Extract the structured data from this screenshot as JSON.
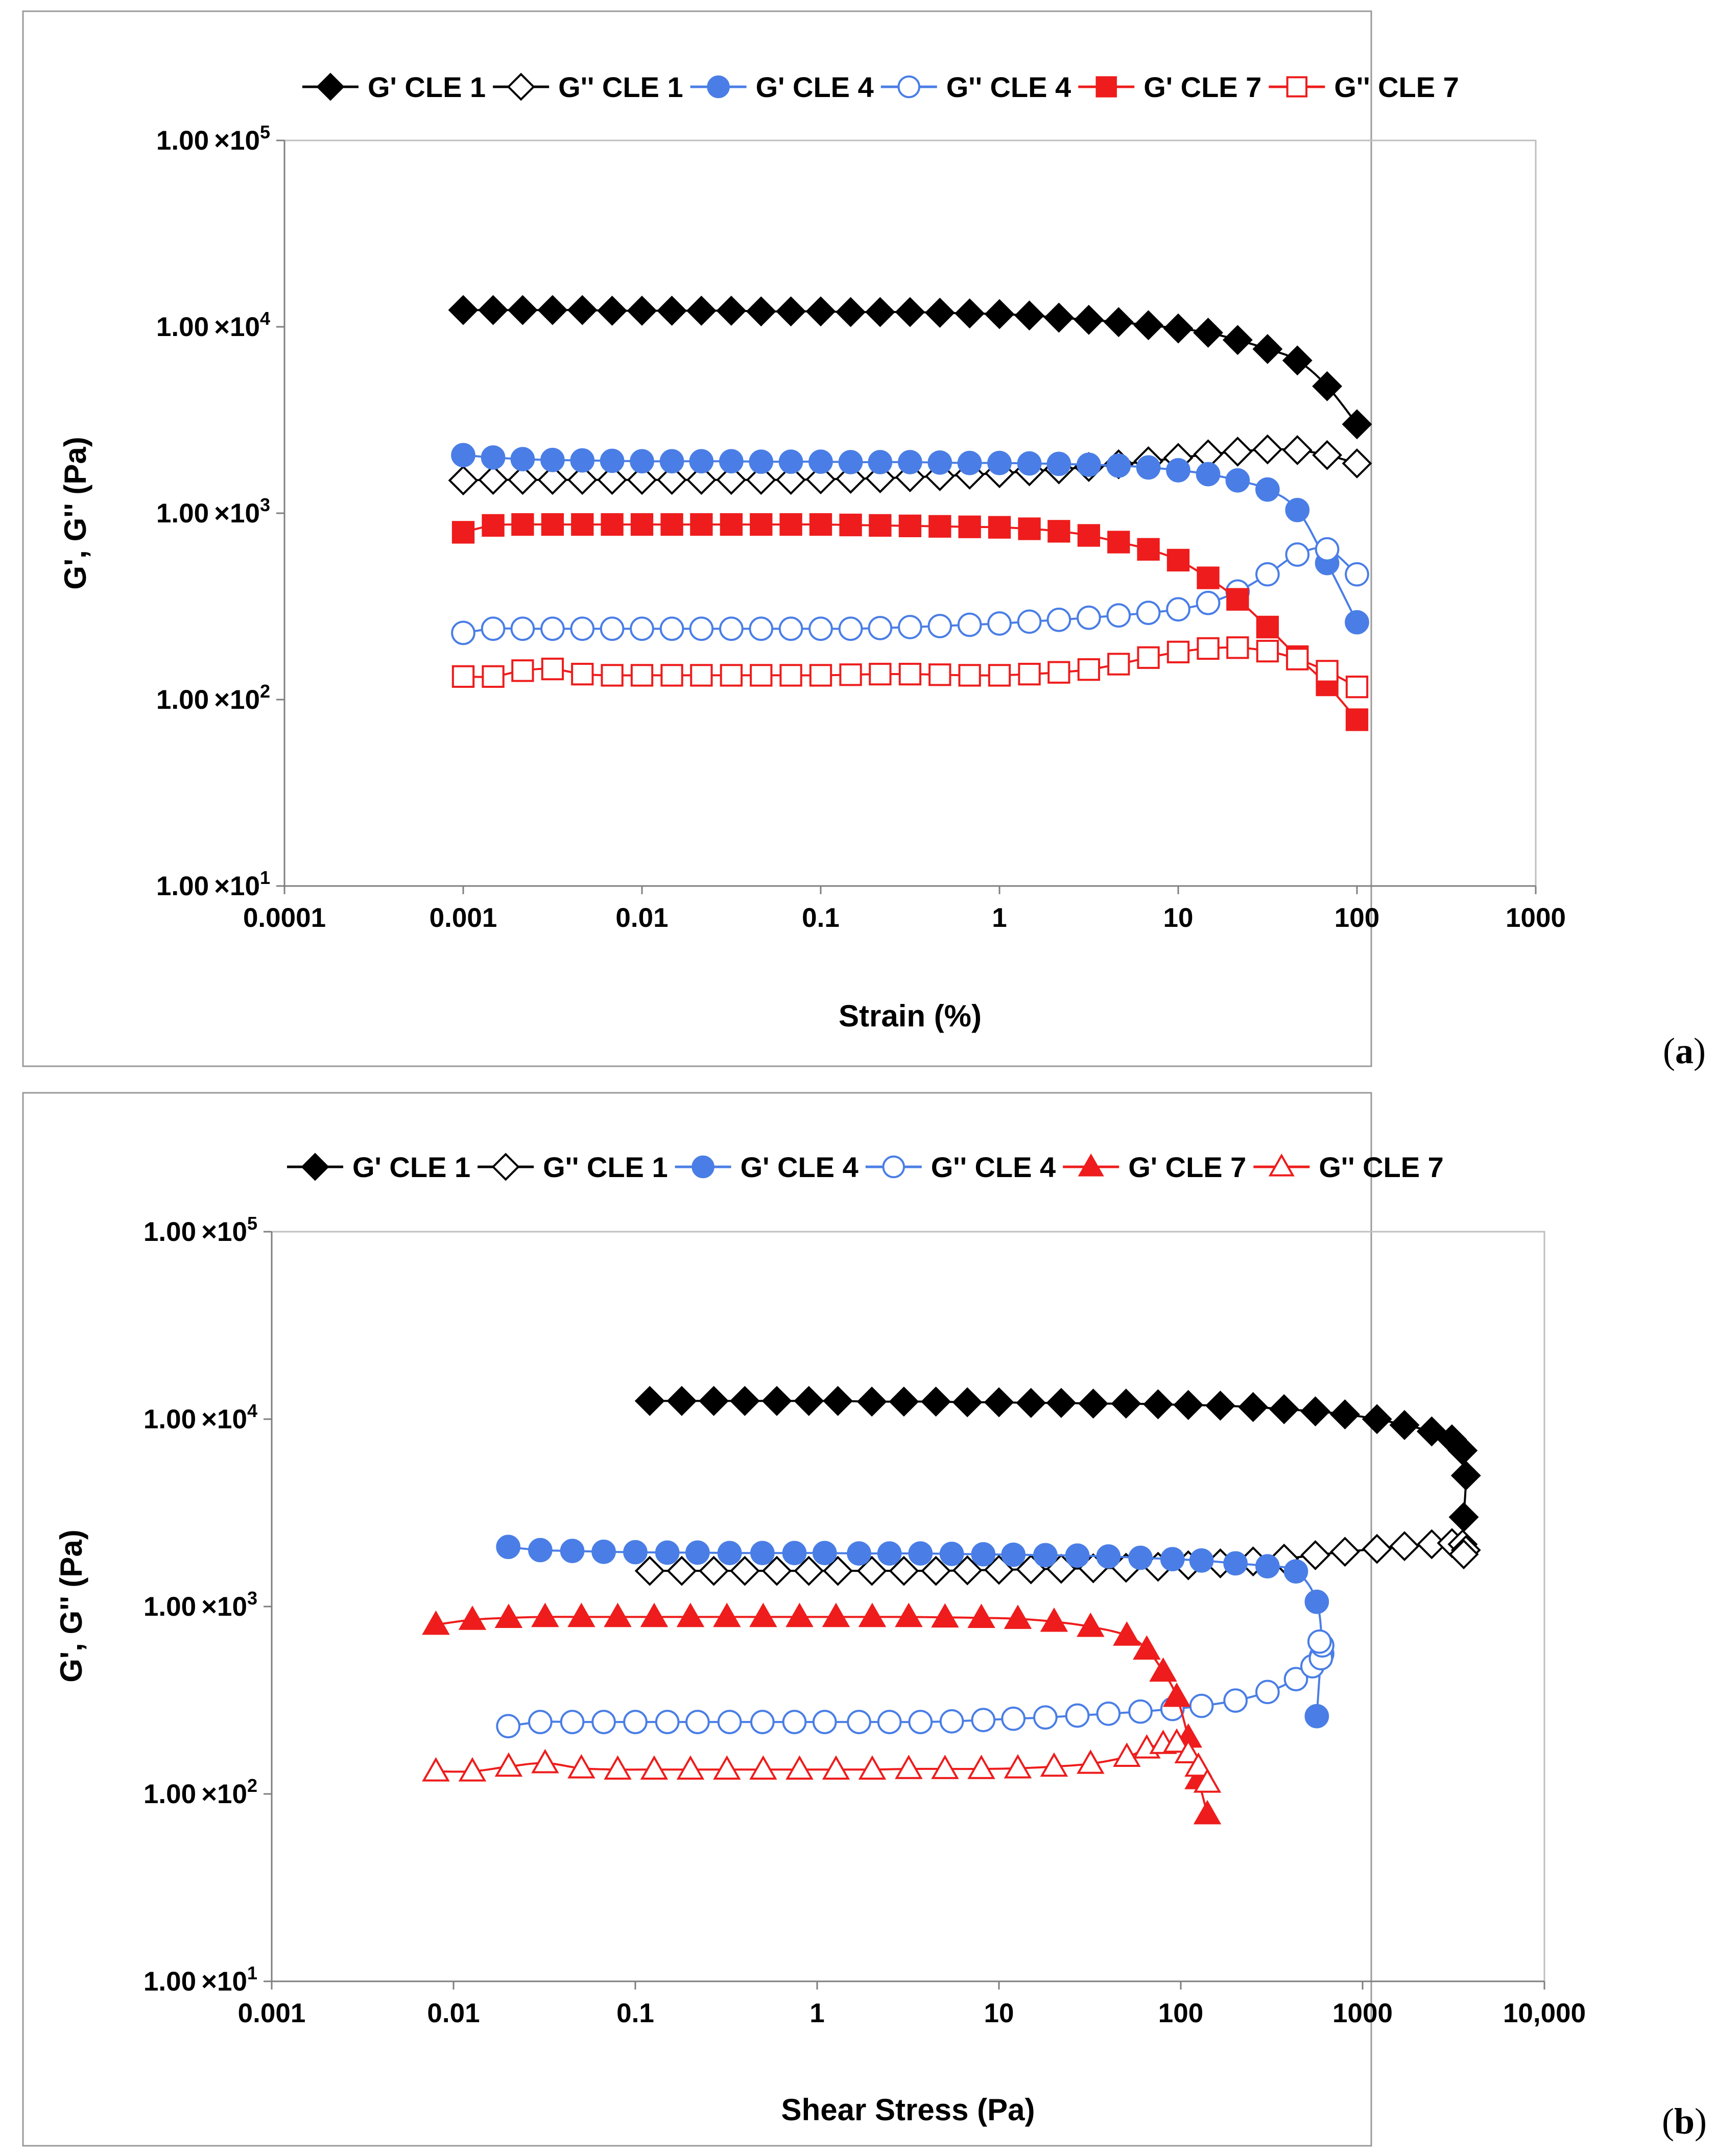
{
  "chart_data": [
    {
      "type": "line",
      "panel_label": "(a)",
      "panel_open": "(",
      "panel_letter": "a",
      "panel_close": ")",
      "xlabel": "Strain (%)",
      "ylabel": "G', G'' (Pa)",
      "xscale": "log",
      "yscale": "log",
      "xlim": [
        0.0001,
        1000
      ],
      "ylim": [
        10,
        100000
      ],
      "x_ticks": [
        {
          "value": 0.0001,
          "label": "0.0001"
        },
        {
          "value": 0.001,
          "label": "0.001"
        },
        {
          "value": 0.01,
          "label": "0.01"
        },
        {
          "value": 0.1,
          "label": "0.1"
        },
        {
          "value": 1,
          "label": "1"
        },
        {
          "value": 10,
          "label": "10"
        },
        {
          "value": 100,
          "label": "100"
        },
        {
          "value": 1000,
          "label": "1000"
        }
      ],
      "y_ticks": [
        {
          "value": 10,
          "mantissa": "1.00",
          "times": "×",
          "base": "10",
          "exp": "1"
        },
        {
          "value": 100,
          "mantissa": "1.00",
          "times": "×",
          "base": "10",
          "exp": "2"
        },
        {
          "value": 1000,
          "mantissa": "1.00",
          "times": "×",
          "base": "10",
          "exp": "3"
        },
        {
          "value": 10000,
          "mantissa": "1.00",
          "times": "×",
          "base": "10",
          "exp": "4"
        },
        {
          "value": 100000,
          "mantissa": "1.00",
          "times": "×",
          "base": "10",
          "exp": "5"
        }
      ],
      "legend_position": "top",
      "series": [
        {
          "name": "G' CLE 1",
          "color": "#000000",
          "marker": "diamond",
          "filled": true,
          "x": [
            0.001,
            0.00147,
            0.00215,
            0.00316,
            0.00464,
            0.00681,
            0.01,
            0.0147,
            0.0215,
            0.0316,
            0.0464,
            0.0681,
            0.1,
            0.147,
            0.215,
            0.316,
            0.464,
            0.681,
            1,
            1.47,
            2.15,
            3.16,
            4.64,
            6.81,
            10,
            14.7,
            21.5,
            31.6,
            46.4,
            68.1,
            100
          ],
          "y": [
            12300,
            12300,
            12300,
            12300,
            12300,
            12200,
            12200,
            12200,
            12200,
            12200,
            12100,
            12100,
            12100,
            12000,
            12000,
            12000,
            11900,
            11800,
            11700,
            11500,
            11200,
            10900,
            10600,
            10200,
            9800,
            9300,
            8500,
            7600,
            6600,
            4800,
            3000
          ]
        },
        {
          "name": "G'' CLE 1",
          "color": "#000000",
          "marker": "diamond",
          "filled": false,
          "x": [
            0.001,
            0.00147,
            0.00215,
            0.00316,
            0.00464,
            0.00681,
            0.01,
            0.0147,
            0.0215,
            0.0316,
            0.0464,
            0.0681,
            0.1,
            0.147,
            0.215,
            0.316,
            0.464,
            0.681,
            1,
            1.47,
            2.15,
            3.16,
            4.64,
            6.81,
            10,
            14.7,
            21.5,
            31.6,
            46.4,
            68.1,
            100
          ],
          "y": [
            1500,
            1510,
            1510,
            1510,
            1510,
            1510,
            1510,
            1510,
            1510,
            1510,
            1510,
            1510,
            1520,
            1530,
            1540,
            1560,
            1580,
            1610,
            1640,
            1680,
            1720,
            1770,
            1830,
            1900,
            1980,
            2070,
            2140,
            2200,
            2180,
            2050,
            1850
          ]
        },
        {
          "name": "G' CLE 4",
          "color": "#4a7ee6",
          "marker": "circle",
          "filled": true,
          "x": [
            0.001,
            0.00147,
            0.00215,
            0.00316,
            0.00464,
            0.00681,
            0.01,
            0.0147,
            0.0215,
            0.0316,
            0.0464,
            0.0681,
            0.1,
            0.147,
            0.215,
            0.316,
            0.464,
            0.681,
            1,
            1.47,
            2.15,
            3.16,
            4.64,
            6.81,
            10,
            14.7,
            21.5,
            31.6,
            46.4,
            68.1,
            100
          ],
          "y": [
            2050,
            1990,
            1950,
            1930,
            1920,
            1910,
            1900,
            1900,
            1900,
            1900,
            1890,
            1890,
            1890,
            1880,
            1880,
            1880,
            1870,
            1860,
            1860,
            1850,
            1840,
            1820,
            1800,
            1760,
            1700,
            1620,
            1500,
            1340,
            1040,
            540,
            260
          ]
        },
        {
          "name": "G'' CLE 4",
          "color": "#4a7ee6",
          "marker": "circle",
          "filled": false,
          "x": [
            0.001,
            0.00147,
            0.00215,
            0.00316,
            0.00464,
            0.00681,
            0.01,
            0.0147,
            0.0215,
            0.0316,
            0.0464,
            0.0681,
            0.1,
            0.147,
            0.215,
            0.316,
            0.464,
            0.681,
            1,
            1.47,
            2.15,
            3.16,
            4.64,
            6.81,
            10,
            14.7,
            21.5,
            31.6,
            46.4,
            68.1,
            100
          ],
          "y": [
            228,
            240,
            240,
            240,
            240,
            240,
            240,
            240,
            240,
            240,
            240,
            240,
            240,
            240,
            242,
            245,
            248,
            252,
            256,
            262,
            268,
            275,
            283,
            292,
            305,
            330,
            380,
            470,
            600,
            640,
            470
          ]
        },
        {
          "name": "G' CLE 7",
          "color": "#ee1c1c",
          "marker": "square",
          "filled": true,
          "x": [
            0.001,
            0.00147,
            0.00215,
            0.00316,
            0.00464,
            0.00681,
            0.01,
            0.0147,
            0.0215,
            0.0316,
            0.0464,
            0.0681,
            0.1,
            0.147,
            0.215,
            0.316,
            0.464,
            0.681,
            1,
            1.47,
            2.15,
            3.16,
            4.64,
            6.81,
            10,
            14.7,
            21.5,
            31.6,
            46.4,
            68.1,
            100
          ],
          "y": [
            790,
            860,
            870,
            870,
            870,
            870,
            870,
            870,
            870,
            870,
            870,
            870,
            870,
            865,
            860,
            855,
            850,
            845,
            840,
            825,
            800,
            760,
            700,
            640,
            560,
            450,
            345,
            245,
            170,
            120,
            78
          ]
        },
        {
          "name": "G'' CLE 7",
          "color": "#ee1c1c",
          "marker": "square",
          "filled": false,
          "x": [
            0.001,
            0.00147,
            0.00215,
            0.00316,
            0.00464,
            0.00681,
            0.01,
            0.0147,
            0.0215,
            0.0316,
            0.0464,
            0.0681,
            0.1,
            0.147,
            0.215,
            0.316,
            0.464,
            0.681,
            1,
            1.47,
            2.15,
            3.16,
            4.64,
            6.81,
            10,
            14.7,
            21.5,
            31.6,
            46.4,
            68.1,
            100
          ],
          "y": [
            133,
            133,
            143,
            146,
            137,
            135,
            135,
            135,
            135,
            135,
            135,
            135,
            135,
            136,
            137,
            137,
            136,
            135,
            135,
            137,
            140,
            145,
            155,
            168,
            180,
            188,
            190,
            182,
            165,
            142,
            117
          ]
        }
      ]
    },
    {
      "type": "line",
      "panel_label": "(b)",
      "panel_open": "(",
      "panel_letter": "b",
      "panel_close": ")",
      "xlabel": "Shear Stress (Pa)",
      "ylabel": "G', G'' (Pa)",
      "xscale": "log",
      "yscale": "log",
      "xlim": [
        0.001,
        10000
      ],
      "ylim": [
        10,
        100000
      ],
      "x_ticks": [
        {
          "value": 0.001,
          "label": "0.001"
        },
        {
          "value": 0.01,
          "label": "0.01"
        },
        {
          "value": 0.1,
          "label": "0.1"
        },
        {
          "value": 1,
          "label": "1"
        },
        {
          "value": 10,
          "label": "10"
        },
        {
          "value": 100,
          "label": "100"
        },
        {
          "value": 1000,
          "label": "1000"
        },
        {
          "value": 10000,
          "label": "10,000"
        }
      ],
      "y_ticks": [
        {
          "value": 10,
          "mantissa": "1.00",
          "times": "×",
          "base": "10",
          "exp": "1"
        },
        {
          "value": 100,
          "mantissa": "1.00",
          "times": "×",
          "base": "10",
          "exp": "2"
        },
        {
          "value": 1000,
          "mantissa": "1.00",
          "times": "×",
          "base": "10",
          "exp": "3"
        },
        {
          "value": 10000,
          "mantissa": "1.00",
          "times": "×",
          "base": "10",
          "exp": "4"
        },
        {
          "value": 100000,
          "mantissa": "1.00",
          "times": "×",
          "base": "10",
          "exp": "5"
        }
      ],
      "legend_position": "top",
      "series": [
        {
          "name": "G' CLE 1",
          "color": "#000000",
          "marker": "diamond",
          "filled": true,
          "x": [
            0.12,
            0.18,
            0.27,
            0.4,
            0.6,
            0.9,
            1.3,
            2,
            3,
            4.5,
            6.7,
            10,
            15,
            22,
            33,
            50,
            75,
            110,
            165,
            250,
            370,
            550,
            800,
            1200,
            1700,
            2400,
            3100,
            3550,
            3700,
            3600
          ],
          "y": [
            12500,
            12500,
            12500,
            12500,
            12500,
            12500,
            12500,
            12400,
            12400,
            12400,
            12300,
            12300,
            12200,
            12200,
            12100,
            12100,
            12000,
            11900,
            11800,
            11600,
            11300,
            11000,
            10600,
            10000,
            9300,
            8600,
            7800,
            6800,
            5000,
            3000
          ]
        },
        {
          "name": "G'' CLE 1",
          "color": "#000000",
          "marker": "diamond",
          "filled": false,
          "x": [
            0.12,
            0.18,
            0.27,
            0.4,
            0.6,
            0.9,
            1.3,
            2,
            3,
            4.5,
            6.7,
            10,
            15,
            22,
            33,
            50,
            75,
            110,
            165,
            250,
            370,
            550,
            800,
            1200,
            1700,
            2400,
            3100,
            3550,
            3700,
            3600
          ],
          "y": [
            1550,
            1550,
            1550,
            1550,
            1550,
            1550,
            1550,
            1550,
            1550,
            1550,
            1560,
            1570,
            1580,
            1590,
            1600,
            1610,
            1630,
            1660,
            1700,
            1740,
            1800,
            1880,
            1960,
            2030,
            2100,
            2150,
            2180,
            2150,
            2000,
            1900
          ]
        },
        {
          "name": "G' CLE 4",
          "color": "#4a7ee6",
          "marker": "circle",
          "filled": true,
          "x": [
            0.02,
            0.03,
            0.045,
            0.067,
            0.1,
            0.15,
            0.22,
            0.33,
            0.5,
            0.75,
            1.1,
            1.7,
            2.5,
            3.7,
            5.5,
            8.2,
            12,
            18,
            27,
            40,
            60,
            90,
            130,
            200,
            300,
            430,
            560,
            600,
            590,
            560
          ],
          "y": [
            2080,
            2000,
            1980,
            1960,
            1950,
            1940,
            1940,
            1930,
            1930,
            1930,
            1930,
            1920,
            1920,
            1920,
            1910,
            1900,
            1890,
            1880,
            1870,
            1850,
            1820,
            1790,
            1760,
            1700,
            1640,
            1540,
            1060,
            560,
            540,
            260
          ]
        },
        {
          "name": "G'' CLE 4",
          "color": "#4a7ee6",
          "marker": "circle",
          "filled": false,
          "x": [
            0.02,
            0.03,
            0.045,
            0.067,
            0.1,
            0.15,
            0.22,
            0.33,
            0.5,
            0.75,
            1.1,
            1.7,
            2.5,
            3.7,
            5.5,
            8.2,
            12,
            18,
            27,
            40,
            60,
            90,
            130,
            200,
            300,
            430,
            530,
            590,
            600,
            580
          ],
          "y": [
            230,
            242,
            242,
            242,
            242,
            242,
            242,
            242,
            242,
            242,
            242,
            242,
            242,
            242,
            244,
            248,
            252,
            256,
            262,
            268,
            275,
            284,
            295,
            315,
            350,
            410,
            480,
            530,
            620,
            650
          ]
        },
        {
          "name": "G' CLE 7",
          "color": "#ee1c1c",
          "marker": "triangle",
          "filled": true,
          "x": [
            0.008,
            0.0127,
            0.0201,
            0.0319,
            0.0505,
            0.08,
            0.127,
            0.201,
            0.319,
            0.505,
            0.8,
            1.27,
            2.01,
            3.19,
            5.05,
            8,
            12.7,
            20.1,
            31.9,
            50.5,
            65,
            80,
            95,
            110,
            125,
            140
          ],
          "y": [
            800,
            850,
            870,
            880,
            880,
            880,
            880,
            880,
            880,
            880,
            880,
            880,
            880,
            880,
            875,
            870,
            860,
            830,
            780,
            700,
            590,
            450,
            330,
            200,
            120,
            78
          ]
        },
        {
          "name": "G'' CLE 7",
          "color": "#ee1c1c",
          "marker": "triangle",
          "filled": false,
          "x": [
            0.008,
            0.0127,
            0.0201,
            0.0319,
            0.0505,
            0.08,
            0.127,
            0.201,
            0.319,
            0.505,
            0.8,
            1.27,
            2.01,
            3.19,
            5.05,
            8,
            12.7,
            20.1,
            31.9,
            50.5,
            65,
            80,
            95,
            110,
            125,
            140
          ],
          "y": [
            132,
            132,
            140,
            146,
            137,
            135,
            135,
            135,
            135,
            135,
            135,
            135,
            135,
            136,
            136,
            136,
            137,
            140,
            145,
            158,
            175,
            185,
            188,
            165,
            140,
            115
          ]
        }
      ]
    }
  ]
}
